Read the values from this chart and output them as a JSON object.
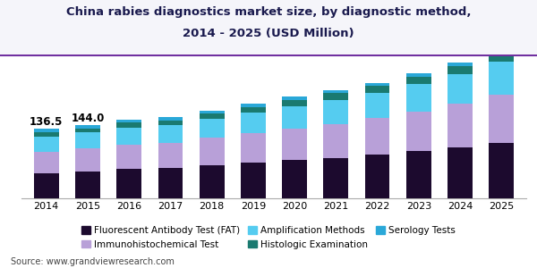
{
  "years": [
    2014,
    2015,
    2016,
    2017,
    2018,
    2019,
    2020,
    2021,
    2022,
    2023,
    2024,
    2025
  ],
  "series": {
    "Fluorescent Antibody Test (FAT)": [
      50,
      53,
      58,
      60,
      65,
      70,
      75,
      80,
      86,
      93,
      101,
      110
    ],
    "Immunohistochemical Test": [
      42,
      45,
      48,
      50,
      54,
      58,
      63,
      67,
      72,
      78,
      85,
      94
    ],
    "Amplification Methods": [
      30,
      32,
      34,
      35,
      38,
      41,
      44,
      47,
      50,
      54,
      59,
      66
    ],
    "Histologic Examination": [
      8,
      8,
      9,
      9,
      10,
      11,
      12,
      13,
      14,
      15,
      16,
      17
    ],
    "Serology Tests": [
      6.5,
      6,
      6,
      6,
      6,
      6,
      6,
      6,
      6,
      6,
      7,
      8
    ]
  },
  "annotation_2014": "136.5",
  "annotation_2015": "144.0",
  "colors": {
    "Fluorescent Antibody Test (FAT)": "#1c0a2e",
    "Immunohistochemical Test": "#b8a0d8",
    "Amplification Methods": "#55ccf0",
    "Histologic Examination": "#1a7a70",
    "Serology Tests": "#2aa8d8"
  },
  "legend_order": [
    "Fluorescent Antibody Test (FAT)",
    "Immunohistochemical Test",
    "Amplification Methods",
    "Histologic Examination",
    "Serology Tests"
  ],
  "title_line1": "China rabies diagnostics market size, by diagnostic method,",
  "title_line2": "2014 - 2025 (USD Million)",
  "source": "Source: www.grandviewresearch.com",
  "title_fontsize": 9.5,
  "annotation_fontsize": 8.5,
  "tick_fontsize": 8,
  "legend_fontsize": 7.5,
  "source_fontsize": 7,
  "bar_width": 0.6,
  "ylim_max": 280,
  "background_color": "#ffffff",
  "title_bg_color": "#ffffff",
  "title_border_color": "#6b0fa8"
}
